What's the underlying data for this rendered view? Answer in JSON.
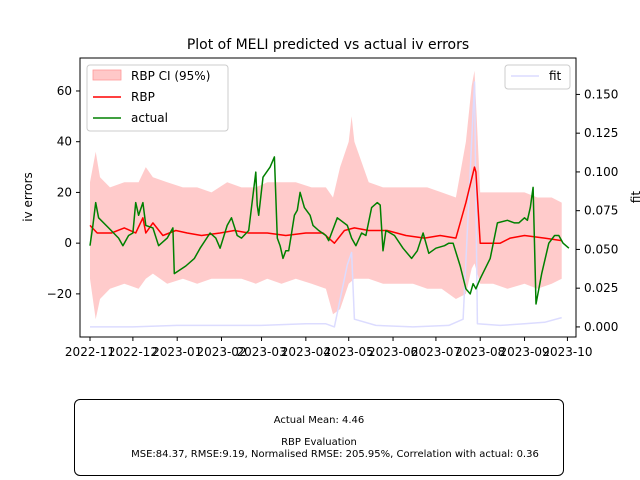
{
  "chart_data": {
    "type": "line",
    "title": "Plot of MELI predicted vs actual iv errors",
    "ylabel": "iv errors",
    "y2label": "fit",
    "ylim": [
      -37,
      73
    ],
    "y2lim": [
      -0.0065,
      0.1735
    ],
    "y_ticks": [
      60,
      40,
      20,
      0,
      -20
    ],
    "y_tick_labels": [
      "60",
      "40",
      "20",
      "0",
      "−20"
    ],
    "y2_ticks": [
      0.15,
      0.125,
      0.1,
      0.075,
      0.05,
      0.025,
      0.0
    ],
    "y2_tick_labels": [
      "0.150",
      "0.125",
      "0.100",
      "0.075",
      "0.050",
      "0.025",
      "0.000"
    ],
    "x_ticks": [
      "2022-11",
      "2022-12",
      "2023-01",
      "2023-02",
      "2023-03",
      "2023-04",
      "2023-05",
      "2023-06",
      "2023-07",
      "2023-08",
      "2023-09",
      "2023-10"
    ],
    "x_range": [
      "2022-10-25",
      "2023-10-07"
    ],
    "legend_left": {
      "placement": "top-left",
      "entries": [
        "RBP CI (95%)",
        "RBP",
        "actual"
      ]
    },
    "legend_right": {
      "placement": "top-right",
      "entries": [
        "fit"
      ]
    },
    "colors": {
      "ci": "#ffc8c8",
      "rbp": "#ff0000",
      "actual": "#008000",
      "fit": "#dcdcff"
    },
    "rbp": {
      "name": "RBP",
      "points": [
        [
          "2022-11-01",
          7
        ],
        [
          "2022-11-06",
          4
        ],
        [
          "2022-11-16",
          4
        ],
        [
          "2022-11-25",
          6
        ],
        [
          "2022-12-03",
          4
        ],
        [
          "2022-12-08",
          10
        ],
        [
          "2022-12-10",
          4
        ],
        [
          "2022-12-15",
          8
        ],
        [
          "2022-12-22",
          3
        ],
        [
          "2022-12-31",
          5
        ],
        [
          "2023-01-08",
          4
        ],
        [
          "2023-01-18",
          3
        ],
        [
          "2023-01-31",
          4
        ],
        [
          "2023-02-10",
          5
        ],
        [
          "2023-02-20",
          4
        ],
        [
          "2023-03-05",
          4
        ],
        [
          "2023-03-18",
          3
        ],
        [
          "2023-04-01",
          4
        ],
        [
          "2023-04-13",
          4
        ],
        [
          "2023-04-21",
          0
        ],
        [
          "2023-04-28",
          5
        ],
        [
          "2023-05-05",
          6
        ],
        [
          "2023-05-15",
          5
        ],
        [
          "2023-05-28",
          5
        ],
        [
          "2023-06-10",
          3
        ],
        [
          "2023-06-23",
          2
        ],
        [
          "2023-07-04",
          3
        ],
        [
          "2023-07-15",
          2
        ],
        [
          "2023-07-22",
          16
        ],
        [
          "2023-07-28",
          30
        ],
        [
          "2023-07-29",
          28
        ],
        [
          "2023-08-01",
          0
        ],
        [
          "2023-08-15",
          0
        ],
        [
          "2023-08-22",
          2
        ],
        [
          "2023-09-01",
          3
        ],
        [
          "2023-09-15",
          2
        ],
        [
          "2023-09-27",
          1
        ]
      ]
    },
    "actual": {
      "name": "actual",
      "points": [
        [
          "2022-11-01",
          -1
        ],
        [
          "2022-11-03",
          7
        ],
        [
          "2022-11-05",
          16
        ],
        [
          "2022-11-07",
          10
        ],
        [
          "2022-11-14",
          6
        ],
        [
          "2022-11-21",
          2
        ],
        [
          "2022-11-24",
          -1
        ],
        [
          "2022-11-28",
          3
        ],
        [
          "2022-12-01",
          4
        ],
        [
          "2022-12-03",
          16
        ],
        [
          "2022-12-05",
          11
        ],
        [
          "2022-12-08",
          16
        ],
        [
          "2022-12-10",
          7
        ],
        [
          "2022-12-15",
          6
        ],
        [
          "2022-12-19",
          -1
        ],
        [
          "2022-12-25",
          2
        ],
        [
          "2022-12-29",
          6
        ],
        [
          "2022-12-30",
          -12
        ],
        [
          "2023-01-07",
          -9
        ],
        [
          "2023-01-13",
          -6
        ],
        [
          "2023-01-17",
          -2
        ],
        [
          "2023-01-24",
          4
        ],
        [
          "2023-01-28",
          2
        ],
        [
          "2023-01-31",
          -2
        ],
        [
          "2023-02-05",
          7
        ],
        [
          "2023-02-08",
          10
        ],
        [
          "2023-02-12",
          3
        ],
        [
          "2023-02-15",
          2
        ],
        [
          "2023-02-20",
          5
        ],
        [
          "2023-02-25",
          28
        ],
        [
          "2023-02-26",
          15
        ],
        [
          "2023-02-27",
          11
        ],
        [
          "2023-03-02",
          26
        ],
        [
          "2023-03-07",
          30
        ],
        [
          "2023-03-10",
          34
        ],
        [
          "2023-03-12",
          2
        ],
        [
          "2023-03-14",
          -1
        ],
        [
          "2023-03-16",
          -6
        ],
        [
          "2023-03-18",
          -3
        ],
        [
          "2023-03-20",
          -3
        ],
        [
          "2023-03-22",
          4
        ],
        [
          "2023-03-24",
          11
        ],
        [
          "2023-03-26",
          13
        ],
        [
          "2023-03-28",
          20
        ],
        [
          "2023-03-31",
          14
        ],
        [
          "2023-04-04",
          11
        ],
        [
          "2023-04-06",
          7
        ],
        [
          "2023-04-10",
          5
        ],
        [
          "2023-04-15",
          3
        ],
        [
          "2023-04-17",
          1
        ],
        [
          "2023-04-23",
          10
        ],
        [
          "2023-04-30",
          7
        ],
        [
          "2023-05-03",
          2
        ],
        [
          "2023-05-06",
          -1
        ],
        [
          "2023-05-10",
          4
        ],
        [
          "2023-05-13",
          3
        ],
        [
          "2023-05-17",
          14
        ],
        [
          "2023-05-21",
          16
        ],
        [
          "2023-05-23",
          15
        ],
        [
          "2023-05-25",
          -3
        ],
        [
          "2023-05-27",
          5
        ],
        [
          "2023-06-02",
          3
        ],
        [
          "2023-06-08",
          -2
        ],
        [
          "2023-06-14",
          -6
        ],
        [
          "2023-06-18",
          -3
        ],
        [
          "2023-06-22",
          4
        ],
        [
          "2023-06-26",
          -4
        ],
        [
          "2023-07-01",
          -2
        ],
        [
          "2023-07-07",
          -1
        ],
        [
          "2023-07-10",
          0
        ],
        [
          "2023-07-13",
          0
        ],
        [
          "2023-07-18",
          -9
        ],
        [
          "2023-07-22",
          -18
        ],
        [
          "2023-07-25",
          -20
        ],
        [
          "2023-07-27",
          -16
        ],
        [
          "2023-07-29",
          -18
        ],
        [
          "2023-08-01",
          -14
        ],
        [
          "2023-08-08",
          -6
        ],
        [
          "2023-08-13",
          8
        ],
        [
          "2023-08-20",
          9
        ],
        [
          "2023-08-25",
          8
        ],
        [
          "2023-08-28",
          8
        ],
        [
          "2023-09-01",
          10
        ],
        [
          "2023-09-03",
          9
        ],
        [
          "2023-09-05",
          14
        ],
        [
          "2023-09-07",
          22
        ],
        [
          "2023-09-09",
          -24
        ],
        [
          "2023-09-13",
          -12
        ],
        [
          "2023-09-18",
          0
        ],
        [
          "2023-09-22",
          3
        ],
        [
          "2023-09-25",
          3
        ],
        [
          "2023-09-28",
          0
        ],
        [
          "2023-10-02",
          -2
        ]
      ],
      "note": "approximate trace read from chart"
    },
    "ci_upper": [
      [
        "2022-11-01",
        24
      ],
      [
        "2022-11-05",
        36
      ],
      [
        "2022-11-08",
        26
      ],
      [
        "2022-11-15",
        22
      ],
      [
        "2022-11-25",
        24
      ],
      [
        "2022-12-05",
        24
      ],
      [
        "2022-12-10",
        30
      ],
      [
        "2022-12-15",
        26
      ],
      [
        "2022-12-25",
        24
      ],
      [
        "2023-01-05",
        22
      ],
      [
        "2023-01-15",
        22
      ],
      [
        "2023-01-25",
        20
      ],
      [
        "2023-02-05",
        24
      ],
      [
        "2023-02-15",
        22
      ],
      [
        "2023-02-25",
        22
      ],
      [
        "2023-03-05",
        24
      ],
      [
        "2023-03-15",
        24
      ],
      [
        "2023-03-25",
        24
      ],
      [
        "2023-04-05",
        22
      ],
      [
        "2023-04-15",
        22
      ],
      [
        "2023-04-20",
        18
      ],
      [
        "2023-04-25",
        30
      ],
      [
        "2023-05-01",
        40
      ],
      [
        "2023-05-03",
        50
      ],
      [
        "2023-05-05",
        40
      ],
      [
        "2023-05-15",
        24
      ],
      [
        "2023-05-25",
        22
      ],
      [
        "2023-06-05",
        22
      ],
      [
        "2023-06-15",
        22
      ],
      [
        "2023-06-25",
        22
      ],
      [
        "2023-07-05",
        20
      ],
      [
        "2023-07-15",
        18
      ],
      [
        "2023-07-22",
        40
      ],
      [
        "2023-07-26",
        62
      ],
      [
        "2023-07-28",
        68
      ],
      [
        "2023-08-01",
        20
      ],
      [
        "2023-08-10",
        20
      ],
      [
        "2023-08-20",
        20
      ],
      [
        "2023-09-01",
        20
      ],
      [
        "2023-09-10",
        18
      ],
      [
        "2023-09-20",
        18
      ],
      [
        "2023-09-27",
        16
      ]
    ],
    "ci_lower": [
      [
        "2022-11-01",
        -14
      ],
      [
        "2022-11-05",
        -30
      ],
      [
        "2022-11-08",
        -22
      ],
      [
        "2022-11-15",
        -18
      ],
      [
        "2022-11-25",
        -16
      ],
      [
        "2022-12-05",
        -18
      ],
      [
        "2022-12-10",
        -14
      ],
      [
        "2022-12-15",
        -12
      ],
      [
        "2022-12-25",
        -16
      ],
      [
        "2023-01-05",
        -14
      ],
      [
        "2023-01-15",
        -16
      ],
      [
        "2023-01-25",
        -14
      ],
      [
        "2023-02-05",
        -14
      ],
      [
        "2023-02-15",
        -14
      ],
      [
        "2023-02-25",
        -16
      ],
      [
        "2023-03-05",
        -14
      ],
      [
        "2023-03-15",
        -16
      ],
      [
        "2023-03-25",
        -14
      ],
      [
        "2023-04-05",
        -16
      ],
      [
        "2023-04-15",
        -18
      ],
      [
        "2023-04-20",
        -28
      ],
      [
        "2023-04-25",
        -26
      ],
      [
        "2023-05-01",
        -16
      ],
      [
        "2023-05-05",
        -14
      ],
      [
        "2023-05-15",
        -14
      ],
      [
        "2023-05-25",
        -16
      ],
      [
        "2023-06-05",
        -16
      ],
      [
        "2023-06-15",
        -16
      ],
      [
        "2023-06-25",
        -18
      ],
      [
        "2023-07-05",
        -18
      ],
      [
        "2023-07-15",
        -22
      ],
      [
        "2023-07-22",
        -20
      ],
      [
        "2023-07-26",
        -10
      ],
      [
        "2023-07-28",
        -8
      ],
      [
        "2023-08-01",
        -16
      ],
      [
        "2023-08-10",
        -16
      ],
      [
        "2023-08-20",
        -18
      ],
      [
        "2023-09-01",
        -16
      ],
      [
        "2023-09-10",
        -18
      ],
      [
        "2023-09-20",
        -16
      ],
      [
        "2023-09-27",
        -14
      ]
    ],
    "fit": {
      "name": "fit",
      "points": [
        [
          "2022-11-01",
          0.0
        ],
        [
          "2022-12-01",
          0.0
        ],
        [
          "2023-01-01",
          0.001
        ],
        [
          "2023-02-01",
          0.001
        ],
        [
          "2023-03-01",
          0.001
        ],
        [
          "2023-04-01",
          0.002
        ],
        [
          "2023-04-15",
          0.002
        ],
        [
          "2023-04-21",
          0.0
        ],
        [
          "2023-04-30",
          0.04
        ],
        [
          "2023-05-03",
          0.048
        ],
        [
          "2023-05-05",
          0.005
        ],
        [
          "2023-05-20",
          0.001
        ],
        [
          "2023-06-15",
          0.0
        ],
        [
          "2023-07-10",
          0.001
        ],
        [
          "2023-07-20",
          0.005
        ],
        [
          "2023-07-25",
          0.1
        ],
        [
          "2023-07-28",
          0.158
        ],
        [
          "2023-07-30",
          0.002
        ],
        [
          "2023-08-15",
          0.001
        ],
        [
          "2023-09-01",
          0.002
        ],
        [
          "2023-09-15",
          0.003
        ],
        [
          "2023-09-27",
          0.006
        ]
      ]
    }
  },
  "evaluation": {
    "actual_mean": "Actual Mean: 4.46",
    "heading": "RBP Evaluation",
    "stats": "MSE:84.37, RMSE:9.19, Normalised RMSE: 205.95%, Correlation with actual: 0.36"
  }
}
